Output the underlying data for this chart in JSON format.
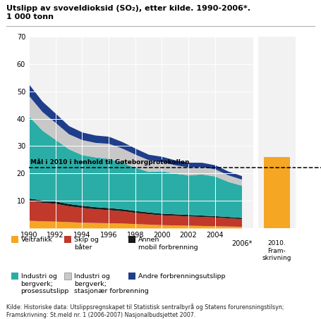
{
  "years": [
    1990,
    1991,
    1992,
    1993,
    1994,
    1995,
    1996,
    1997,
    1998,
    1999,
    2000,
    2001,
    2002,
    2003,
    2004,
    2005,
    2006
  ],
  "veitrafikk": [
    2.8,
    2.6,
    2.5,
    2.3,
    2.1,
    2.0,
    1.9,
    1.8,
    1.6,
    1.4,
    1.2,
    1.1,
    1.0,
    0.9,
    0.8,
    0.7,
    0.6
  ],
  "skip_og_bater": [
    7.2,
    6.8,
    6.5,
    5.8,
    5.4,
    5.0,
    4.8,
    4.5,
    4.1,
    3.8,
    3.6,
    3.5,
    3.4,
    3.3,
    3.2,
    3.0,
    2.8
  ],
  "annen_mobil": [
    0.9,
    0.88,
    0.85,
    0.82,
    0.8,
    0.78,
    0.75,
    0.72,
    0.68,
    0.65,
    0.6,
    0.58,
    0.55,
    0.52,
    0.5,
    0.48,
    0.45
  ],
  "industri_prosess": [
    30.0,
    25.5,
    22.5,
    20.0,
    18.5,
    18.2,
    18.0,
    17.0,
    15.8,
    14.8,
    15.5,
    14.8,
    14.5,
    15.0,
    14.5,
    12.8,
    11.8
  ],
  "industri_stasjonar": [
    7.5,
    6.8,
    6.2,
    5.5,
    5.5,
    5.3,
    5.5,
    5.2,
    4.8,
    4.3,
    3.4,
    3.1,
    2.9,
    2.7,
    2.6,
    2.4,
    2.2
  ],
  "andre_forbrenning": [
    4.2,
    3.8,
    3.4,
    3.0,
    2.8,
    2.7,
    2.6,
    2.4,
    2.2,
    2.0,
    1.9,
    1.8,
    1.7,
    1.6,
    1.5,
    1.4,
    1.3
  ],
  "framskrivning_value": 26.0,
  "goal_value": 22.0,
  "colors": {
    "veitrafikk": "#f5a623",
    "skip_og_bater": "#c0392b",
    "annen_mobil": "#1a1a1a",
    "industri_prosess": "#2aada6",
    "industri_stasjonar": "#c8c8c8",
    "andre_forbrenning": "#1e3e8c",
    "framskrivning": "#f5a623"
  },
  "ylim": [
    0,
    70
  ],
  "yticks": [
    0,
    10,
    20,
    30,
    40,
    50,
    60,
    70
  ],
  "xticks": [
    1990,
    1992,
    1994,
    1996,
    1998,
    2000,
    2002,
    2004
  ],
  "goal_label": "Mål i 2010 i henhold til Gøteborgprotokollen",
  "title_line1": "Utslipp av svoveldioksid (SO₂), etter kilde. 1990-2006*.",
  "title_line2": "1 000 tonn",
  "framskrivning_label": "2010.\nFram-\nskrivning",
  "source_text": "Kilde: Historiske data: Utslippsregnskapet til Statistisk sentralbyrå og Statens forurensningstilsyn;\nFramskrivning: St.meld nr. 1 (2006-2007) Nasjonalbudsjettet 2007.",
  "legend_row1": [
    {
      "label": "Veitrafikk",
      "color": "#f5a623"
    },
    {
      "label": "Skip og\nbåter",
      "color": "#c0392b"
    },
    {
      "label": "Annen\nmobil forbrenning",
      "color": "#1a1a1a"
    }
  ],
  "legend_row2": [
    {
      "label": "Industri og\nbergverk;\nprosessutslipp",
      "color": "#2aada6"
    },
    {
      "label": "Industri og\nbergverk;\nstasjonær forbrenning",
      "color": "#c8c8c8"
    },
    {
      "label": "Andre forbrenningsutslipp",
      "color": "#1e3e8c"
    }
  ]
}
